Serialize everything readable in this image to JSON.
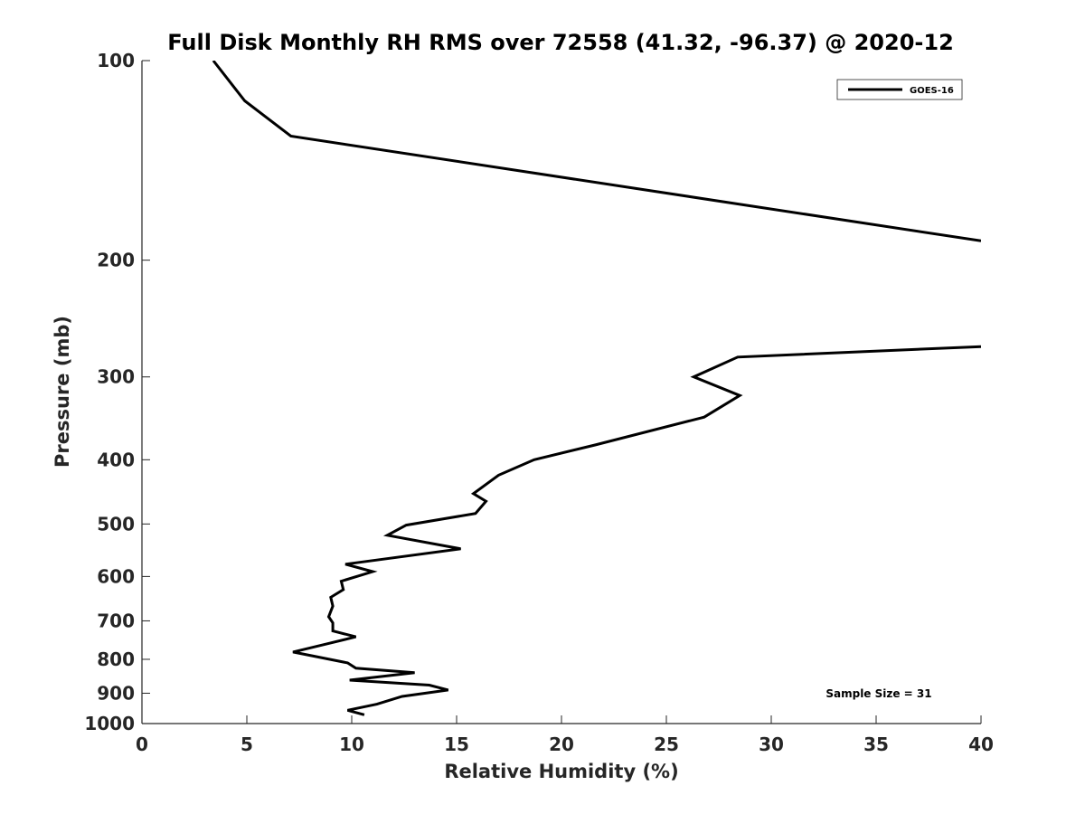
{
  "chart_data": {
    "type": "line",
    "title": "Full Disk Monthly RH RMS over 72558 (41.32, -96.37) @ 2020-12",
    "xlabel": "Relative Humidity (%)",
    "ylabel": "Pressure (mb)",
    "xlim": [
      0,
      40
    ],
    "ylim": [
      100,
      1000
    ],
    "y_scale": "log",
    "y_reversed": true,
    "xticks": [
      0,
      5,
      10,
      15,
      20,
      25,
      30,
      35,
      40
    ],
    "yticks": [
      100,
      200,
      300,
      400,
      500,
      600,
      700,
      800,
      900,
      1000
    ],
    "grid": false,
    "legend": {
      "location": "top-right",
      "entries": [
        "GOES-16"
      ]
    },
    "annotation": "Sample Size = 31",
    "line_color": "#000000",
    "series": [
      {
        "name": "GOES-16",
        "segments": [
          [
            [
              3.4,
              100
            ],
            [
              4.9,
              115
            ],
            [
              7.1,
              130
            ],
            [
              40,
              187
            ]
          ],
          [
            [
              40,
              270
            ],
            [
              28.4,
              280
            ],
            [
              26.3,
              300
            ],
            [
              28.5,
              320
            ],
            [
              26.8,
              345
            ],
            [
              21.6,
              380
            ],
            [
              18.7,
              400
            ],
            [
              17.0,
              422
            ],
            [
              15.8,
              450
            ],
            [
              16.4,
              462
            ],
            [
              15.9,
              482
            ],
            [
              12.6,
              502
            ],
            [
              11.7,
              520
            ],
            [
              15.2,
              545
            ],
            [
              9.7,
              575
            ],
            [
              11.0,
              590
            ],
            [
              9.5,
              610
            ],
            [
              9.6,
              628
            ],
            [
              9.0,
              645
            ],
            [
              9.1,
              665
            ],
            [
              8.9,
              690
            ],
            [
              9.1,
              705
            ],
            [
              9.1,
              725
            ],
            [
              10.2,
              740
            ],
            [
              8.7,
              760
            ],
            [
              7.2,
              780
            ],
            [
              9.8,
              810
            ],
            [
              10.2,
              825
            ],
            [
              13.0,
              838
            ],
            [
              9.9,
              860
            ],
            [
              13.7,
              875
            ],
            [
              14.6,
              890
            ],
            [
              12.4,
              910
            ],
            [
              11.2,
              935
            ],
            [
              9.8,
              955
            ],
            [
              10.6,
              970
            ]
          ]
        ]
      }
    ]
  }
}
